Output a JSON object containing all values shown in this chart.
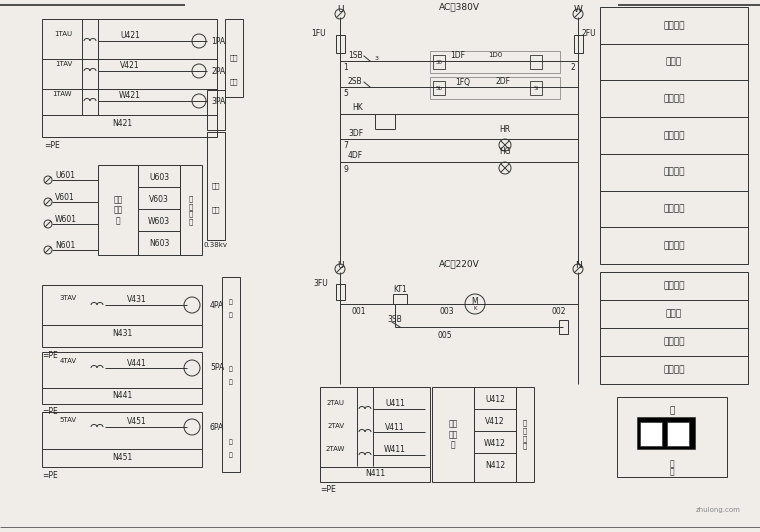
{
  "bg_color": "#f0ede8",
  "line_color": "#333333",
  "text_color": "#222222",
  "right_labels_top": [
    "控制电源",
    "熔断器",
    "合闸回路",
    "分闸回路",
    "负控分闸",
    "合闸指示",
    "分闸指示"
  ],
  "right_labels_bottom": [
    "控制电源",
    "熔断器",
    "风泵回路",
    "温控回路"
  ],
  "ac380_label": "AC～380V",
  "ac220_label": "AC～220V",
  "voltage_label": "0.38kv",
  "fs": 5.5,
  "fm": 6.5,
  "lw": 0.7
}
